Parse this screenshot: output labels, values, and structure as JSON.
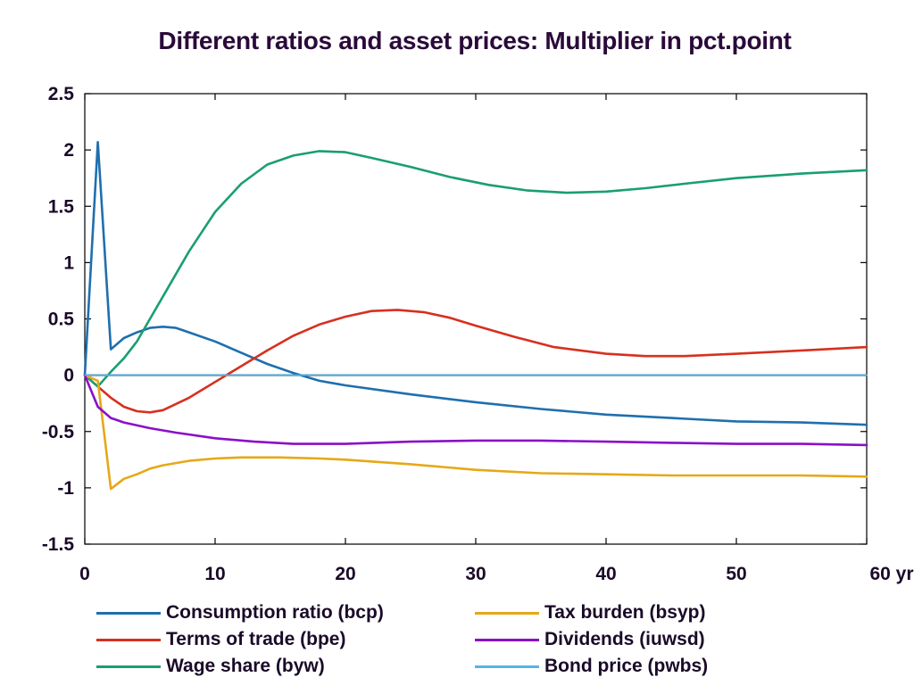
{
  "chart_data": {
    "type": "line",
    "title": "Different ratios and asset prices: Multiplier in pct.point",
    "xlabel": "",
    "ylabel": "",
    "xlim": [
      0,
      60
    ],
    "ylim": [
      -1.5,
      2.5
    ],
    "x_ticks": [
      0,
      10,
      20,
      30,
      40,
      50,
      60
    ],
    "x_tick_labels": [
      "0",
      "10",
      "20",
      "30",
      "40",
      "50",
      "60 yr"
    ],
    "y_ticks": [
      2.5,
      2,
      1.5,
      1,
      0.5,
      0,
      -0.5,
      -1,
      -1.5
    ],
    "y_tick_labels": [
      "2.5",
      "2",
      "1.5",
      "1",
      "0.5",
      "0",
      "-0.5",
      "-1",
      "-1.5"
    ],
    "grid": false,
    "legend_position": "bottom",
    "series": [
      {
        "name": "Consumption ratio (bcp)",
        "color": "#1f6fae",
        "points": [
          [
            0,
            0
          ],
          [
            1,
            2.07
          ],
          [
            2,
            0.23
          ],
          [
            3,
            0.33
          ],
          [
            4,
            0.38
          ],
          [
            5,
            0.42
          ],
          [
            6,
            0.43
          ],
          [
            7,
            0.42
          ],
          [
            8,
            0.38
          ],
          [
            10,
            0.3
          ],
          [
            12,
            0.2
          ],
          [
            14,
            0.1
          ],
          [
            16,
            0.02
          ],
          [
            18,
            -0.05
          ],
          [
            20,
            -0.09
          ],
          [
            25,
            -0.17
          ],
          [
            30,
            -0.24
          ],
          [
            35,
            -0.3
          ],
          [
            40,
            -0.35
          ],
          [
            45,
            -0.38
          ],
          [
            50,
            -0.41
          ],
          [
            55,
            -0.42
          ],
          [
            60,
            -0.44
          ]
        ]
      },
      {
        "name": "Terms of trade (bpe)",
        "color": "#d7301f",
        "points": [
          [
            0,
            0
          ],
          [
            1,
            -0.1
          ],
          [
            2,
            -0.2
          ],
          [
            3,
            -0.28
          ],
          [
            4,
            -0.32
          ],
          [
            5,
            -0.33
          ],
          [
            6,
            -0.31
          ],
          [
            8,
            -0.2
          ],
          [
            10,
            -0.06
          ],
          [
            12,
            0.08
          ],
          [
            14,
            0.22
          ],
          [
            16,
            0.35
          ],
          [
            18,
            0.45
          ],
          [
            20,
            0.52
          ],
          [
            22,
            0.57
          ],
          [
            24,
            0.58
          ],
          [
            26,
            0.56
          ],
          [
            28,
            0.51
          ],
          [
            30,
            0.44
          ],
          [
            33,
            0.34
          ],
          [
            36,
            0.25
          ],
          [
            40,
            0.19
          ],
          [
            43,
            0.17
          ],
          [
            46,
            0.17
          ],
          [
            50,
            0.19
          ],
          [
            55,
            0.22
          ],
          [
            60,
            0.25
          ]
        ]
      },
      {
        "name": "Wage share (byw)",
        "color": "#1a9e74",
        "points": [
          [
            0,
            0
          ],
          [
            1,
            -0.1
          ],
          [
            2,
            0.03
          ],
          [
            3,
            0.15
          ],
          [
            4,
            0.3
          ],
          [
            5,
            0.5
          ],
          [
            6,
            0.7
          ],
          [
            8,
            1.1
          ],
          [
            10,
            1.45
          ],
          [
            12,
            1.7
          ],
          [
            14,
            1.87
          ],
          [
            16,
            1.95
          ],
          [
            18,
            1.99
          ],
          [
            20,
            1.98
          ],
          [
            22,
            1.93
          ],
          [
            25,
            1.85
          ],
          [
            28,
            1.76
          ],
          [
            31,
            1.69
          ],
          [
            34,
            1.64
          ],
          [
            37,
            1.62
          ],
          [
            40,
            1.63
          ],
          [
            43,
            1.66
          ],
          [
            46,
            1.7
          ],
          [
            50,
            1.75
          ],
          [
            55,
            1.79
          ],
          [
            60,
            1.82
          ]
        ]
      },
      {
        "name": "Tax burden (bsyp)",
        "color": "#e6a817",
        "points": [
          [
            0,
            0
          ],
          [
            1,
            -0.05
          ],
          [
            2,
            -1.01
          ],
          [
            3,
            -0.92
          ],
          [
            4,
            -0.88
          ],
          [
            5,
            -0.83
          ],
          [
            6,
            -0.8
          ],
          [
            8,
            -0.76
          ],
          [
            10,
            -0.74
          ],
          [
            12,
            -0.73
          ],
          [
            15,
            -0.73
          ],
          [
            18,
            -0.74
          ],
          [
            20,
            -0.75
          ],
          [
            25,
            -0.79
          ],
          [
            30,
            -0.84
          ],
          [
            35,
            -0.87
          ],
          [
            40,
            -0.88
          ],
          [
            45,
            -0.89
          ],
          [
            50,
            -0.89
          ],
          [
            55,
            -0.89
          ],
          [
            60,
            -0.9
          ]
        ]
      },
      {
        "name": "Dividends (iuwsd)",
        "color": "#8a0fc8",
        "points": [
          [
            0,
            0
          ],
          [
            1,
            -0.28
          ],
          [
            2,
            -0.38
          ],
          [
            3,
            -0.42
          ],
          [
            5,
            -0.47
          ],
          [
            7,
            -0.51
          ],
          [
            10,
            -0.56
          ],
          [
            13,
            -0.59
          ],
          [
            16,
            -0.61
          ],
          [
            20,
            -0.61
          ],
          [
            25,
            -0.59
          ],
          [
            30,
            -0.58
          ],
          [
            35,
            -0.58
          ],
          [
            40,
            -0.59
          ],
          [
            45,
            -0.6
          ],
          [
            50,
            -0.61
          ],
          [
            55,
            -0.61
          ],
          [
            60,
            -0.62
          ]
        ]
      },
      {
        "name": "Bond price (pwbs)",
        "color": "#56b4e9",
        "points": [
          [
            0,
            0
          ],
          [
            60,
            0
          ]
        ]
      }
    ]
  }
}
